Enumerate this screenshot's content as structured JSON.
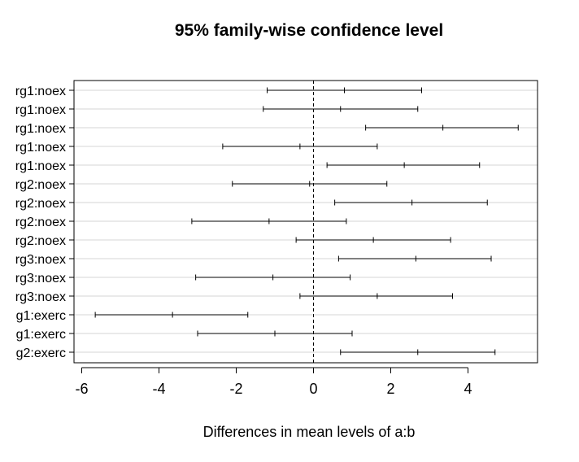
{
  "chart_data": {
    "type": "interval",
    "title": "95% family-wise confidence level",
    "xlabel": "Differences in mean levels of a:b",
    "ylabel": "",
    "xlim": [
      -6.2,
      5.8
    ],
    "x_ticks": [
      -6,
      -4,
      -2,
      0,
      2,
      4
    ],
    "x_tick_labels": [
      "-6",
      "-4",
      "-2",
      "0",
      "2",
      "4"
    ],
    "reference_line": 0,
    "grid": "horizontal",
    "categories": [
      "rg1:noex",
      "rg1:noex",
      "rg1:noex",
      "rg1:noex",
      "rg1:noex",
      "rg2:noex",
      "rg2:noex",
      "rg2:noex",
      "rg2:noex",
      "rg3:noex",
      "rg3:noex",
      "rg3:noex",
      "g1:exerc",
      "g1:exerc",
      "g2:exerc"
    ],
    "intervals": [
      {
        "lwr": -1.2,
        "diff": 0.8,
        "upr": 2.8
      },
      {
        "lwr": -1.3,
        "diff": 0.7,
        "upr": 2.7
      },
      {
        "lwr": 1.35,
        "diff": 3.35,
        "upr": 5.3
      },
      {
        "lwr": -2.35,
        "diff": -0.35,
        "upr": 1.65
      },
      {
        "lwr": 0.35,
        "diff": 2.35,
        "upr": 4.3
      },
      {
        "lwr": -2.1,
        "diff": -0.1,
        "upr": 1.9
      },
      {
        "lwr": 0.55,
        "diff": 2.55,
        "upr": 4.5
      },
      {
        "lwr": -3.15,
        "diff": -1.15,
        "upr": 0.85
      },
      {
        "lwr": -0.45,
        "diff": 1.55,
        "upr": 3.55
      },
      {
        "lwr": 0.65,
        "diff": 2.65,
        "upr": 4.6
      },
      {
        "lwr": -3.05,
        "diff": -1.05,
        "upr": 0.95
      },
      {
        "lwr": -0.35,
        "diff": 1.65,
        "upr": 3.6
      },
      {
        "lwr": -5.65,
        "diff": -3.65,
        "upr": -1.7
      },
      {
        "lwr": -3.0,
        "diff": -1.0,
        "upr": 1.0
      },
      {
        "lwr": 0.7,
        "diff": 2.7,
        "upr": 4.7
      }
    ]
  }
}
